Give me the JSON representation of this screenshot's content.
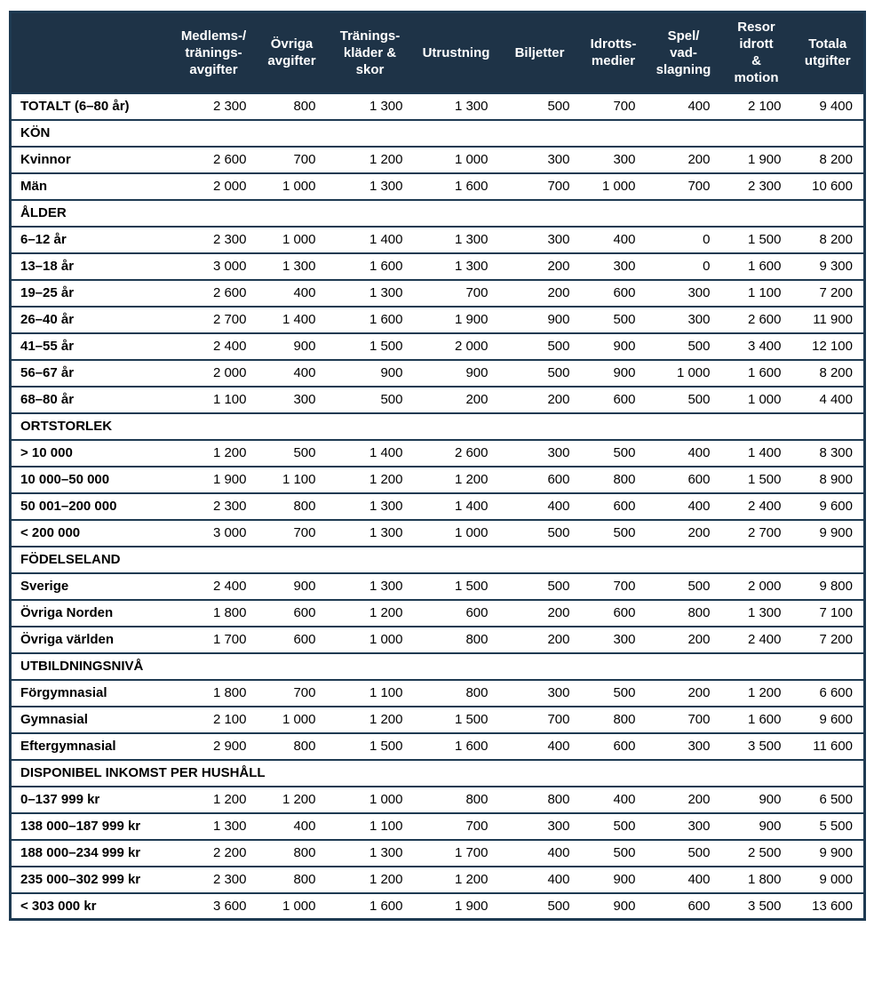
{
  "colors": {
    "header_bg": "#1e3347",
    "border": "#1e3a52",
    "header_text": "#ffffff",
    "body_text": "#000000"
  },
  "table": {
    "columns": [
      {
        "name": "col-category",
        "lines": []
      },
      {
        "name": "col-medlems-traningsavgifter",
        "lines": [
          "Medlems-/",
          "tränings-",
          "avgifter"
        ]
      },
      {
        "name": "col-ovriga-avgifter",
        "lines": [
          "Övriga",
          "avgifter"
        ]
      },
      {
        "name": "col-traningsklader-skor",
        "lines": [
          "Tränings-",
          "kläder &",
          "skor"
        ]
      },
      {
        "name": "col-utrustning",
        "lines": [
          "Utrustning"
        ]
      },
      {
        "name": "col-biljetter",
        "lines": [
          "Biljetter"
        ]
      },
      {
        "name": "col-idrottsmedier",
        "lines": [
          "Idrotts-",
          "medier"
        ]
      },
      {
        "name": "col-spel-vadslagning",
        "lines": [
          "Spel/",
          "vad-",
          "slagning"
        ]
      },
      {
        "name": "col-resor-idrott-motion",
        "lines": [
          "Resor",
          "idrott",
          "&",
          "motion"
        ]
      },
      {
        "name": "col-totala-utgifter",
        "lines": [
          "Totala",
          "utgifter"
        ]
      }
    ],
    "rows": [
      {
        "type": "data",
        "label": "TOTALT (6–80 år)",
        "values": [
          "2 300",
          "800",
          "1 300",
          "1 300",
          "500",
          "700",
          "400",
          "2 100",
          "9 400"
        ]
      },
      {
        "type": "section",
        "label": "KÖN"
      },
      {
        "type": "data",
        "label": "Kvinnor",
        "values": [
          "2 600",
          "700",
          "1 200",
          "1 000",
          "300",
          "300",
          "200",
          "1 900",
          "8 200"
        ]
      },
      {
        "type": "data",
        "label": "Män",
        "values": [
          "2 000",
          "1 000",
          "1 300",
          "1 600",
          "700",
          "1 000",
          "700",
          "2 300",
          "10 600"
        ]
      },
      {
        "type": "section",
        "label": "ÅLDER"
      },
      {
        "type": "data",
        "label": "6–12 år",
        "values": [
          "2 300",
          "1 000",
          "1 400",
          "1 300",
          "300",
          "400",
          "0",
          "1 500",
          "8 200"
        ]
      },
      {
        "type": "data",
        "label": "13–18 år",
        "values": [
          "3 000",
          "1 300",
          "1 600",
          "1 300",
          "200",
          "300",
          "0",
          "1 600",
          "9 300"
        ]
      },
      {
        "type": "data",
        "label": "19–25 år",
        "values": [
          "2 600",
          "400",
          "1 300",
          "700",
          "200",
          "600",
          "300",
          "1 100",
          "7 200"
        ]
      },
      {
        "type": "data",
        "label": "26–40 år",
        "values": [
          "2 700",
          "1 400",
          "1 600",
          "1 900",
          "900",
          "500",
          "300",
          "2 600",
          "11 900"
        ]
      },
      {
        "type": "data",
        "label": "41–55 år",
        "values": [
          "2 400",
          "900",
          "1 500",
          "2 000",
          "500",
          "900",
          "500",
          "3 400",
          "12 100"
        ]
      },
      {
        "type": "data",
        "label": "56–67 år",
        "values": [
          "2 000",
          "400",
          "900",
          "900",
          "500",
          "900",
          "1 000",
          "1 600",
          "8 200"
        ]
      },
      {
        "type": "data",
        "label": "68–80 år",
        "values": [
          "1 100",
          "300",
          "500",
          "200",
          "200",
          "600",
          "500",
          "1 000",
          "4 400"
        ]
      },
      {
        "type": "section",
        "label": "ORTSTORLEK"
      },
      {
        "type": "data",
        "label": "> 10 000",
        "values": [
          "1 200",
          "500",
          "1 400",
          "2 600",
          "300",
          "500",
          "400",
          "1 400",
          "8 300"
        ]
      },
      {
        "type": "data",
        "label": "10 000–50 000",
        "values": [
          "1 900",
          "1 100",
          "1 200",
          "1 200",
          "600",
          "800",
          "600",
          "1 500",
          "8 900"
        ]
      },
      {
        "type": "data",
        "label": "50 001–200 000",
        "values": [
          "2 300",
          "800",
          "1 300",
          "1 400",
          "400",
          "600",
          "400",
          "2 400",
          "9 600"
        ]
      },
      {
        "type": "data",
        "label": "< 200 000",
        "values": [
          "3 000",
          "700",
          "1 300",
          "1 000",
          "500",
          "500",
          "200",
          "2 700",
          "9 900"
        ]
      },
      {
        "type": "section",
        "label": "FÖDELSELAND"
      },
      {
        "type": "data",
        "label": "Sverige",
        "values": [
          "2 400",
          "900",
          "1 300",
          "1 500",
          "500",
          "700",
          "500",
          "2 000",
          "9 800"
        ]
      },
      {
        "type": "data",
        "label": "Övriga Norden",
        "values": [
          "1 800",
          "600",
          "1 200",
          "600",
          "200",
          "600",
          "800",
          "1 300",
          "7 100"
        ]
      },
      {
        "type": "data",
        "label": "Övriga världen",
        "values": [
          "1 700",
          "600",
          "1 000",
          "800",
          "200",
          "300",
          "200",
          "2 400",
          "7 200"
        ]
      },
      {
        "type": "section",
        "label": "UTBILDNINGSNIVÅ"
      },
      {
        "type": "data",
        "label": "Förgymnasial",
        "values": [
          "1 800",
          "700",
          "1 100",
          "800",
          "300",
          "500",
          "200",
          "1 200",
          "6 600"
        ]
      },
      {
        "type": "data",
        "label": "Gymnasial",
        "values": [
          "2 100",
          "1 000",
          "1 200",
          "1 500",
          "700",
          "800",
          "700",
          "1 600",
          "9 600"
        ]
      },
      {
        "type": "data",
        "label": "Eftergymnasial",
        "values": [
          "2 900",
          "800",
          "1 500",
          "1 600",
          "400",
          "600",
          "300",
          "3 500",
          "11 600"
        ]
      },
      {
        "type": "section",
        "label": "DISPONIBEL INKOMST PER HUSHÅLL"
      },
      {
        "type": "data",
        "label": "0–137 999 kr",
        "values": [
          "1 200",
          "1 200",
          "1 000",
          "800",
          "800",
          "400",
          "200",
          "900",
          "6 500"
        ]
      },
      {
        "type": "data",
        "label": "138 000–187 999 kr",
        "values": [
          "1 300",
          "400",
          "1 100",
          "700",
          "300",
          "500",
          "300",
          "900",
          "5 500"
        ]
      },
      {
        "type": "data",
        "label": "188 000–234 999 kr",
        "values": [
          "2 200",
          "800",
          "1 300",
          "1 700",
          "400",
          "500",
          "500",
          "2 500",
          "9 900"
        ]
      },
      {
        "type": "data",
        "label": "235 000–302 999 kr",
        "values": [
          "2 300",
          "800",
          "1 200",
          "1 200",
          "400",
          "900",
          "400",
          "1 800",
          "9 000"
        ]
      },
      {
        "type": "data",
        "label": "< 303 000 kr",
        "values": [
          "3 600",
          "1 000",
          "1 600",
          "1 900",
          "500",
          "900",
          "600",
          "3 500",
          "13 600"
        ]
      }
    ]
  }
}
